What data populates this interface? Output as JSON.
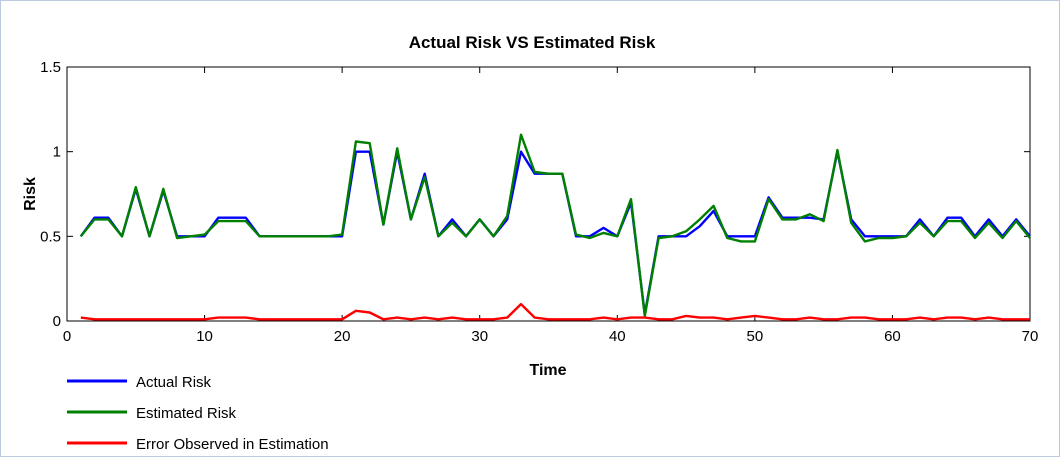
{
  "chart_data": {
    "type": "line",
    "title": "Actual Risk VS Estimated Risk",
    "xlabel": "Time",
    "ylabel": "Risk",
    "xlim": [
      0,
      70
    ],
    "ylim": [
      0,
      1.5
    ],
    "xticks": [
      0,
      10,
      20,
      30,
      40,
      50,
      60,
      70
    ],
    "yticks": [
      0,
      0.5,
      1,
      1.5
    ],
    "xtick_labels": [
      "0",
      "10",
      "20",
      "30",
      "40",
      "50",
      "60",
      "70"
    ],
    "ytick_labels": [
      "0",
      "0.5",
      "1",
      "1.5"
    ],
    "grid": false,
    "legend_position": "bottom-left",
    "x": [
      1,
      2,
      3,
      4,
      5,
      6,
      7,
      8,
      9,
      10,
      11,
      12,
      13,
      14,
      15,
      16,
      17,
      18,
      19,
      20,
      21,
      22,
      23,
      24,
      25,
      26,
      27,
      28,
      29,
      30,
      31,
      32,
      33,
      34,
      35,
      36,
      37,
      38,
      39,
      40,
      41,
      42,
      43,
      44,
      45,
      46,
      47,
      48,
      49,
      50,
      51,
      52,
      53,
      54,
      55,
      56,
      57,
      58,
      59,
      60,
      61,
      62,
      63,
      64,
      65,
      66,
      67,
      68,
      69,
      70
    ],
    "series": [
      {
        "name": "Actual Risk",
        "color": "#0000ff",
        "values": [
          0.5,
          0.61,
          0.61,
          0.5,
          0.78,
          0.5,
          0.77,
          0.5,
          0.5,
          0.5,
          0.61,
          0.61,
          0.61,
          0.5,
          0.5,
          0.5,
          0.5,
          0.5,
          0.5,
          0.5,
          1.0,
          1.0,
          0.57,
          1.0,
          0.6,
          0.87,
          0.5,
          0.6,
          0.5,
          0.6,
          0.5,
          0.6,
          1.0,
          0.87,
          0.87,
          0.87,
          0.5,
          0.5,
          0.55,
          0.5,
          0.7,
          0.04,
          0.5,
          0.5,
          0.5,
          0.56,
          0.65,
          0.5,
          0.5,
          0.5,
          0.73,
          0.61,
          0.61,
          0.61,
          0.6,
          1.0,
          0.6,
          0.5,
          0.5,
          0.5,
          0.5,
          0.6,
          0.5,
          0.61,
          0.61,
          0.5,
          0.6,
          0.5,
          0.6,
          0.5
        ]
      },
      {
        "name": "Estimated Risk",
        "color": "#008000",
        "values": [
          0.5,
          0.6,
          0.6,
          0.5,
          0.79,
          0.5,
          0.78,
          0.49,
          0.5,
          0.51,
          0.59,
          0.59,
          0.59,
          0.5,
          0.5,
          0.5,
          0.5,
          0.5,
          0.5,
          0.51,
          1.06,
          1.05,
          0.57,
          1.02,
          0.6,
          0.85,
          0.5,
          0.58,
          0.5,
          0.6,
          0.5,
          0.62,
          1.1,
          0.88,
          0.87,
          0.87,
          0.51,
          0.49,
          0.52,
          0.5,
          0.72,
          0.03,
          0.49,
          0.5,
          0.53,
          0.6,
          0.68,
          0.49,
          0.47,
          0.47,
          0.72,
          0.6,
          0.6,
          0.63,
          0.59,
          1.01,
          0.58,
          0.47,
          0.49,
          0.49,
          0.5,
          0.58,
          0.5,
          0.59,
          0.59,
          0.49,
          0.58,
          0.49,
          0.59,
          0.49
        ]
      },
      {
        "name": "Error Observed in Estimation",
        "color": "#ff0000",
        "values": [
          0.02,
          0.01,
          0.01,
          0.01,
          0.01,
          0.01,
          0.01,
          0.01,
          0.01,
          0.01,
          0.02,
          0.02,
          0.02,
          0.01,
          0.01,
          0.01,
          0.01,
          0.01,
          0.01,
          0.01,
          0.06,
          0.05,
          0.01,
          0.02,
          0.01,
          0.02,
          0.01,
          0.02,
          0.01,
          0.01,
          0.01,
          0.02,
          0.1,
          0.02,
          0.01,
          0.01,
          0.01,
          0.01,
          0.02,
          0.01,
          0.02,
          0.02,
          0.01,
          0.01,
          0.03,
          0.02,
          0.02,
          0.01,
          0.02,
          0.03,
          0.02,
          0.01,
          0.01,
          0.02,
          0.01,
          0.01,
          0.02,
          0.02,
          0.01,
          0.01,
          0.01,
          0.02,
          0.01,
          0.02,
          0.02,
          0.01,
          0.02,
          0.01,
          0.01,
          0.01
        ]
      }
    ]
  }
}
